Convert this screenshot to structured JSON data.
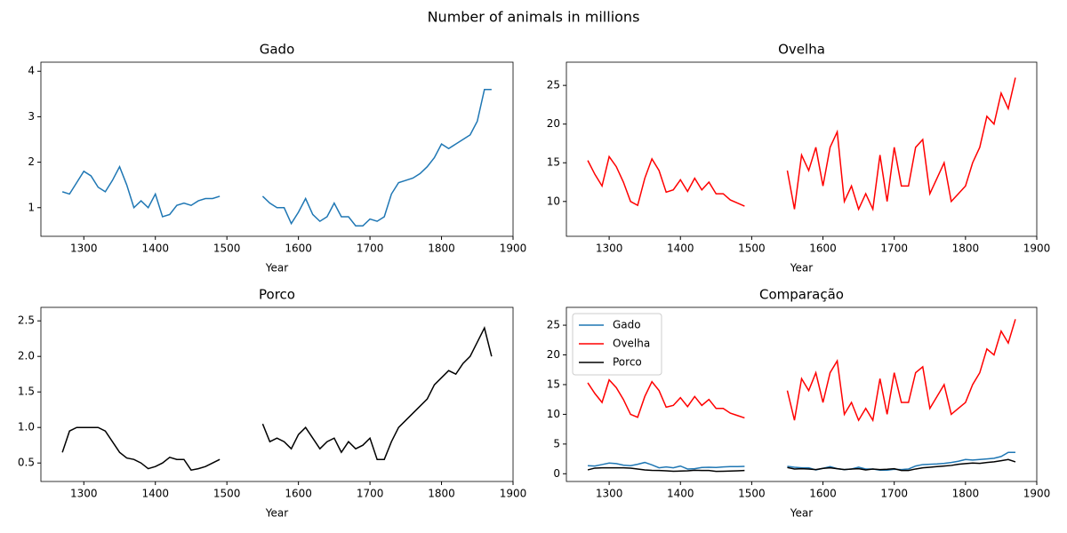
{
  "title": "Number of animals in millions",
  "chart_data": [
    {
      "type": "line",
      "title": "Gado",
      "x_label": "Year",
      "x": [
        1270,
        1280,
        1290,
        1300,
        1310,
        1320,
        1330,
        1340,
        1350,
        1360,
        1370,
        1380,
        1390,
        1400,
        1410,
        1420,
        1430,
        1440,
        1450,
        1460,
        1470,
        1480,
        1490,
        1500,
        1510,
        1520,
        1530,
        1540,
        1550,
        1560,
        1570,
        1580,
        1590,
        1600,
        1610,
        1620,
        1630,
        1640,
        1650,
        1660,
        1670,
        1680,
        1690,
        1700,
        1710,
        1720,
        1730,
        1740,
        1750,
        1760,
        1770,
        1780,
        1790,
        1800,
        1810,
        1820,
        1830,
        1840,
        1850,
        1860,
        1870
      ],
      "series": [
        {
          "name": "Gado",
          "color": "#1f77b4",
          "values": [
            1.35,
            1.3,
            1.55,
            1.8,
            1.7,
            1.45,
            1.35,
            1.6,
            1.9,
            1.5,
            1.0,
            1.15,
            1.0,
            1.3,
            0.8,
            0.85,
            1.05,
            1.1,
            1.05,
            1.15,
            1.2,
            1.2,
            1.25,
            null,
            null,
            null,
            null,
            null,
            1.25,
            1.1,
            1.0,
            1.0,
            0.65,
            0.9,
            1.2,
            0.85,
            0.7,
            0.8,
            1.1,
            0.8,
            0.8,
            0.6,
            0.6,
            0.75,
            0.7,
            0.8,
            1.3,
            1.55,
            1.6,
            1.65,
            1.75,
            1.9,
            2.1,
            2.4,
            2.3,
            2.4,
            2.5,
            2.6,
            2.9,
            3.6,
            3.6
          ]
        }
      ],
      "xlim": [
        1240,
        1900
      ],
      "xticks": [
        1300,
        1400,
        1500,
        1600,
        1700,
        1800,
        1900
      ],
      "ylim": [
        0.37,
        4.2
      ],
      "yticks": [
        1,
        2,
        3,
        4
      ]
    },
    {
      "type": "line",
      "title": "Ovelha",
      "x_label": "Year",
      "x": [
        1270,
        1280,
        1290,
        1300,
        1310,
        1320,
        1330,
        1340,
        1350,
        1360,
        1370,
        1380,
        1390,
        1400,
        1410,
        1420,
        1430,
        1440,
        1450,
        1460,
        1470,
        1480,
        1490,
        1500,
        1510,
        1520,
        1530,
        1540,
        1550,
        1560,
        1570,
        1580,
        1590,
        1600,
        1610,
        1620,
        1630,
        1640,
        1650,
        1660,
        1670,
        1680,
        1690,
        1700,
        1710,
        1720,
        1730,
        1740,
        1750,
        1760,
        1770,
        1780,
        1790,
        1800,
        1810,
        1820,
        1830,
        1840,
        1850,
        1860,
        1870
      ],
      "series": [
        {
          "name": "Ovelha",
          "color": "#ff0000",
          "values": [
            15.3,
            13.5,
            12,
            15.8,
            14.5,
            12.5,
            10,
            9.5,
            13,
            15.5,
            14,
            11.2,
            11.5,
            12.8,
            11.3,
            13,
            11.5,
            12.5,
            11,
            11,
            10.2,
            9.8,
            9.4,
            null,
            null,
            null,
            null,
            null,
            14,
            9,
            16,
            14,
            17,
            12,
            17,
            19,
            10,
            12,
            9,
            11,
            9,
            16,
            10,
            17,
            12,
            12,
            17,
            18,
            11,
            13,
            15,
            10,
            11,
            12,
            15,
            17,
            21,
            20,
            24,
            22,
            26
          ]
        }
      ],
      "xlim": [
        1240,
        1900
      ],
      "xticks": [
        1300,
        1400,
        1500,
        1600,
        1700,
        1800,
        1900
      ],
      "ylim": [
        5.5,
        28
      ],
      "yticks": [
        10,
        15,
        20,
        25
      ]
    },
    {
      "type": "line",
      "title": "Porco",
      "x_label": "Year",
      "x": [
        1270,
        1280,
        1290,
        1300,
        1310,
        1320,
        1330,
        1340,
        1350,
        1360,
        1370,
        1380,
        1390,
        1400,
        1410,
        1420,
        1430,
        1440,
        1450,
        1460,
        1470,
        1480,
        1490,
        1500,
        1510,
        1520,
        1530,
        1540,
        1550,
        1560,
        1570,
        1580,
        1590,
        1600,
        1610,
        1620,
        1630,
        1640,
        1650,
        1660,
        1670,
        1680,
        1690,
        1700,
        1710,
        1720,
        1730,
        1740,
        1750,
        1760,
        1770,
        1780,
        1790,
        1800,
        1810,
        1820,
        1830,
        1840,
        1850,
        1860,
        1870
      ],
      "series": [
        {
          "name": "Porco",
          "color": "#000000",
          "values": [
            0.65,
            0.95,
            1.0,
            1.0,
            1.0,
            1.0,
            0.95,
            0.8,
            0.65,
            0.57,
            0.55,
            0.5,
            0.42,
            0.45,
            0.5,
            0.58,
            0.55,
            0.55,
            0.4,
            0.42,
            0.45,
            0.5,
            0.55,
            null,
            null,
            null,
            null,
            null,
            1.05,
            0.8,
            0.85,
            0.8,
            0.7,
            0.9,
            1.0,
            0.85,
            0.7,
            0.8,
            0.85,
            0.65,
            0.8,
            0.7,
            0.75,
            0.85,
            0.55,
            0.55,
            0.8,
            1.0,
            1.1,
            1.2,
            1.3,
            1.4,
            1.6,
            1.7,
            1.8,
            1.75,
            1.9,
            2.0,
            2.2,
            2.4,
            2.0
          ]
        }
      ],
      "xlim": [
        1240,
        1900
      ],
      "xticks": [
        1300,
        1400,
        1500,
        1600,
        1700,
        1800,
        1900
      ],
      "ylim": [
        0.24,
        2.69
      ],
      "yticks": [
        {
          "value": 0.5,
          "label": "0.5"
        },
        {
          "value": 1,
          "label": "1.0"
        },
        {
          "value": 1.5,
          "label": "1.5"
        },
        {
          "value": 2,
          "label": "2.0"
        },
        {
          "value": 2.5,
          "label": "2.5"
        }
      ]
    },
    {
      "type": "line",
      "title": "Comparação",
      "x_label": "Year",
      "legend": "upper left",
      "x": [
        1270,
        1280,
        1290,
        1300,
        1310,
        1320,
        1330,
        1340,
        1350,
        1360,
        1370,
        1380,
        1390,
        1400,
        1410,
        1420,
        1430,
        1440,
        1450,
        1460,
        1470,
        1480,
        1490,
        1500,
        1510,
        1520,
        1530,
        1540,
        1550,
        1560,
        1570,
        1580,
        1590,
        1600,
        1610,
        1620,
        1630,
        1640,
        1650,
        1660,
        1670,
        1680,
        1690,
        1700,
        1710,
        1720,
        1730,
        1740,
        1750,
        1760,
        1770,
        1780,
        1790,
        1800,
        1810,
        1820,
        1830,
        1840,
        1850,
        1860,
        1870
      ],
      "series": [
        {
          "name": "Gado",
          "color": "#1f77b4",
          "values": [
            1.35,
            1.3,
            1.55,
            1.8,
            1.7,
            1.45,
            1.35,
            1.6,
            1.9,
            1.5,
            1.0,
            1.15,
            1.0,
            1.3,
            0.8,
            0.85,
            1.05,
            1.1,
            1.05,
            1.15,
            1.2,
            1.2,
            1.25,
            null,
            null,
            null,
            null,
            null,
            1.25,
            1.1,
            1.0,
            1.0,
            0.65,
            0.9,
            1.2,
            0.85,
            0.7,
            0.8,
            1.1,
            0.8,
            0.8,
            0.6,
            0.6,
            0.75,
            0.7,
            0.8,
            1.3,
            1.55,
            1.6,
            1.65,
            1.75,
            1.9,
            2.1,
            2.4,
            2.3,
            2.4,
            2.5,
            2.6,
            2.9,
            3.6,
            3.6
          ]
        },
        {
          "name": "Ovelha",
          "color": "#ff0000",
          "values": [
            15.3,
            13.5,
            12,
            15.8,
            14.5,
            12.5,
            10,
            9.5,
            13,
            15.5,
            14,
            11.2,
            11.5,
            12.8,
            11.3,
            13,
            11.5,
            12.5,
            11,
            11,
            10.2,
            9.8,
            9.4,
            null,
            null,
            null,
            null,
            null,
            14,
            9,
            16,
            14,
            17,
            12,
            17,
            19,
            10,
            12,
            9,
            11,
            9,
            16,
            10,
            17,
            12,
            12,
            17,
            18,
            11,
            13,
            15,
            10,
            11,
            12,
            15,
            17,
            21,
            20,
            24,
            22,
            26
          ]
        },
        {
          "name": "Porco",
          "color": "#000000",
          "values": [
            0.65,
            0.95,
            1.0,
            1.0,
            1.0,
            1.0,
            0.95,
            0.8,
            0.65,
            0.57,
            0.55,
            0.5,
            0.42,
            0.45,
            0.5,
            0.58,
            0.55,
            0.55,
            0.4,
            0.42,
            0.45,
            0.5,
            0.55,
            null,
            null,
            null,
            null,
            null,
            1.05,
            0.8,
            0.85,
            0.8,
            0.7,
            0.9,
            1.0,
            0.85,
            0.7,
            0.8,
            0.85,
            0.65,
            0.8,
            0.7,
            0.75,
            0.85,
            0.55,
            0.55,
            0.8,
            1.0,
            1.1,
            1.2,
            1.3,
            1.4,
            1.6,
            1.7,
            1.8,
            1.75,
            1.9,
            2.0,
            2.2,
            2.4,
            2.0
          ]
        }
      ],
      "xlim": [
        1240,
        1900
      ],
      "xticks": [
        1300,
        1400,
        1500,
        1600,
        1700,
        1800,
        1900
      ],
      "ylim": [
        -1.3,
        28
      ],
      "yticks": [
        0,
        5,
        10,
        15,
        20,
        25
      ]
    }
  ]
}
